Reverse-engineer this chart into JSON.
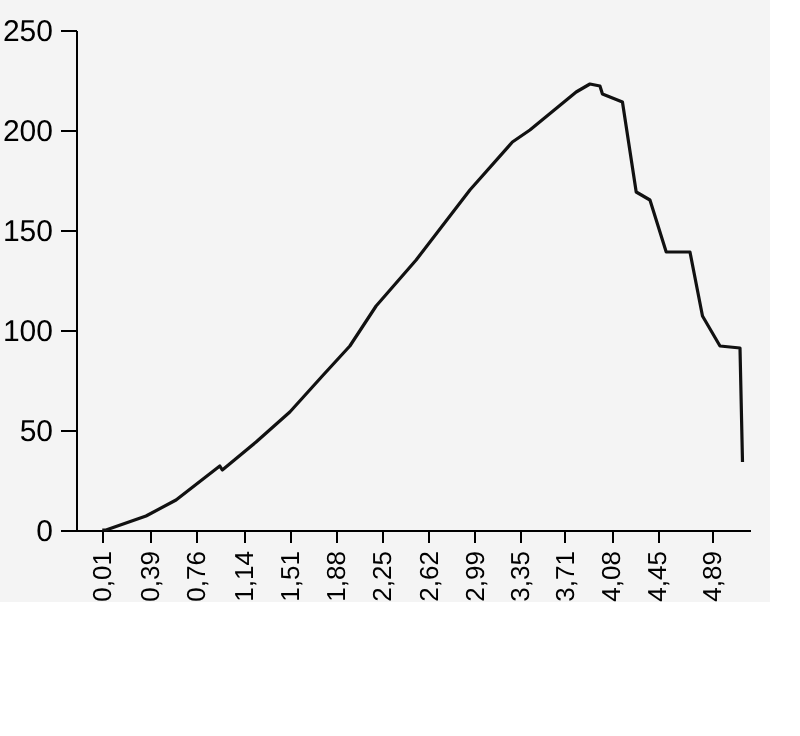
{
  "chart_data": {
    "type": "line",
    "x": [
      0.01,
      0.04,
      0.36,
      0.6,
      0.95,
      0.97,
      1.24,
      1.51,
      1.77,
      1.99,
      2.2,
      2.52,
      2.95,
      3.29,
      3.43,
      3.8,
      3.91,
      3.99,
      4.01,
      4.17,
      4.28,
      4.39,
      4.52,
      4.71,
      4.81,
      4.95,
      5.11,
      5.13
    ],
    "series": [
      {
        "color": "#111111",
        "values": [
          0,
          0,
          7,
          15,
          32,
          30,
          44,
          59,
          77,
          92,
          112,
          135,
          170,
          194,
          200,
          219,
          223,
          222,
          218,
          214,
          169,
          165,
          139,
          139,
          107,
          92,
          91,
          34
        ]
      }
    ],
    "xlim": [
      -0.2,
      5.19
    ],
    "xticks": [
      {
        "value": 0.01,
        "label": "0,01"
      },
      {
        "value": 0.39,
        "label": "0,39"
      },
      {
        "value": 0.76,
        "label": "0,76"
      },
      {
        "value": 1.14,
        "label": "1,14"
      },
      {
        "value": 1.51,
        "label": "1,51"
      },
      {
        "value": 1.88,
        "label": "1,88"
      },
      {
        "value": 2.25,
        "label": "2,25"
      },
      {
        "value": 2.62,
        "label": "2,62"
      },
      {
        "value": 2.99,
        "label": "2,99"
      },
      {
        "value": 3.35,
        "label": "3,35"
      },
      {
        "value": 3.71,
        "label": "3,71"
      },
      {
        "value": 4.08,
        "label": "4,08"
      },
      {
        "value": 4.45,
        "label": "4,45"
      },
      {
        "value": 4.89,
        "label": "4,89"
      }
    ],
    "ylim": [
      0,
      250
    ],
    "yticks": [
      0,
      50,
      100,
      150,
      200,
      250
    ],
    "grid": false,
    "marker": "none",
    "line_style": "solid"
  }
}
